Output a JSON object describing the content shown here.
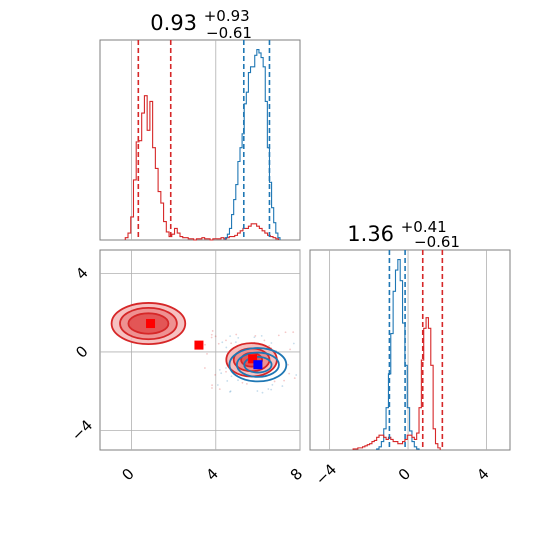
{
  "colors": {
    "red": "#d62728",
    "blue": "#1f77b4",
    "grid": "#b0b0b0",
    "frame": "#7f7f7f"
  },
  "titles": {
    "p1": {
      "main": "0.93",
      "sup": "+0.93",
      "sub": "−0.61"
    },
    "p2": {
      "main": "1.36",
      "sup": "+0.41",
      "sub": "−0.61"
    }
  },
  "chart_data": [
    {
      "type": "histogram",
      "panel": "top-left",
      "x_range": [
        -1.5,
        8.0
      ],
      "quantile_lines": {
        "red": [
          0.32,
          1.86
        ],
        "blue": [
          5.33,
          6.55
        ]
      },
      "series": [
        {
          "color": "red",
          "bin_edges_start": -0.3,
          "bin_width": 0.13,
          "counts": [
            2,
            6,
            20,
            52,
            85,
            86,
            110,
            125,
            95,
            120,
            80,
            62,
            42,
            32,
            16,
            7,
            3,
            5,
            10,
            6,
            3,
            2,
            2,
            1,
            1,
            0,
            1,
            1,
            2,
            1,
            1,
            0,
            1,
            1,
            1,
            2,
            1,
            2,
            3,
            3,
            4,
            6,
            8,
            10,
            10,
            12,
            14,
            14,
            12,
            10,
            8,
            6,
            4,
            3,
            2,
            1
          ]
        },
        {
          "color": "blue",
          "bin_edges_start": 4.45,
          "bin_width": 0.1,
          "counts": [
            2,
            5,
            10,
            22,
            35,
            48,
            68,
            80,
            92,
            118,
            128,
            145,
            150,
            150,
            160,
            165,
            162,
            158,
            150,
            120,
            80,
            50,
            28,
            15,
            6,
            2
          ]
        }
      ]
    },
    {
      "type": "contour",
      "panel": "bottom-left",
      "x_range": [
        -1.5,
        8.0
      ],
      "y_range": [
        -5.0,
        5.2
      ],
      "x_ticks": [
        0,
        4,
        8
      ],
      "y_ticks": [
        -4,
        0,
        4
      ],
      "markers": [
        {
          "color": "red",
          "x": 0.9,
          "y": 1.45
        },
        {
          "color": "red",
          "x": 3.2,
          "y": 0.35
        },
        {
          "color": "red",
          "x": 5.75,
          "y": -0.35
        },
        {
          "color": "blue",
          "x": 6.0,
          "y": -0.65
        }
      ],
      "contours": [
        {
          "color": "red",
          "cx": 0.8,
          "cy": 1.45,
          "radii": [
            [
              1.75,
              1.05
            ],
            [
              1.35,
              0.8
            ],
            [
              0.95,
              0.52
            ]
          ]
        },
        {
          "color": "red",
          "cx": 5.7,
          "cy": -0.4,
          "radii": [
            [
              1.2,
              0.85
            ],
            [
              0.85,
              0.58
            ],
            [
              0.5,
              0.35
            ]
          ]
        },
        {
          "color": "blue",
          "cx": 6.0,
          "cy": -0.65,
          "radii": [
            [
              1.35,
              0.85
            ],
            [
              1.0,
              0.62
            ],
            [
              0.65,
              0.4
            ]
          ]
        }
      ]
    },
    {
      "type": "histogram",
      "panel": "bottom-right",
      "x_range": [
        -5.0,
        5.2
      ],
      "x_ticks": [
        -4,
        0,
        4
      ],
      "quantile_lines": {
        "blue": [
          -0.95,
          -0.15
        ],
        "red": [
          0.75,
          1.75
        ]
      },
      "series": [
        {
          "color": "blue",
          "bin_edges_start": -1.6,
          "bin_width": 0.12,
          "counts": [
            1,
            3,
            8,
            20,
            40,
            72,
            110,
            150,
            170,
            180,
            160,
            120,
            80,
            40,
            18,
            8,
            3,
            1
          ]
        },
        {
          "color": "red",
          "bin_edges_start": -2.8,
          "bin_width": 0.12,
          "counts": [
            1,
            1,
            2,
            2,
            3,
            4,
            5,
            6,
            8,
            9,
            12,
            14,
            14,
            12,
            10,
            12,
            10,
            8,
            8,
            6,
            6,
            8,
            10,
            14,
            14,
            12,
            10,
            16,
            40,
            85,
            115,
            125,
            115,
            80,
            20,
            6,
            2
          ]
        }
      ]
    }
  ]
}
